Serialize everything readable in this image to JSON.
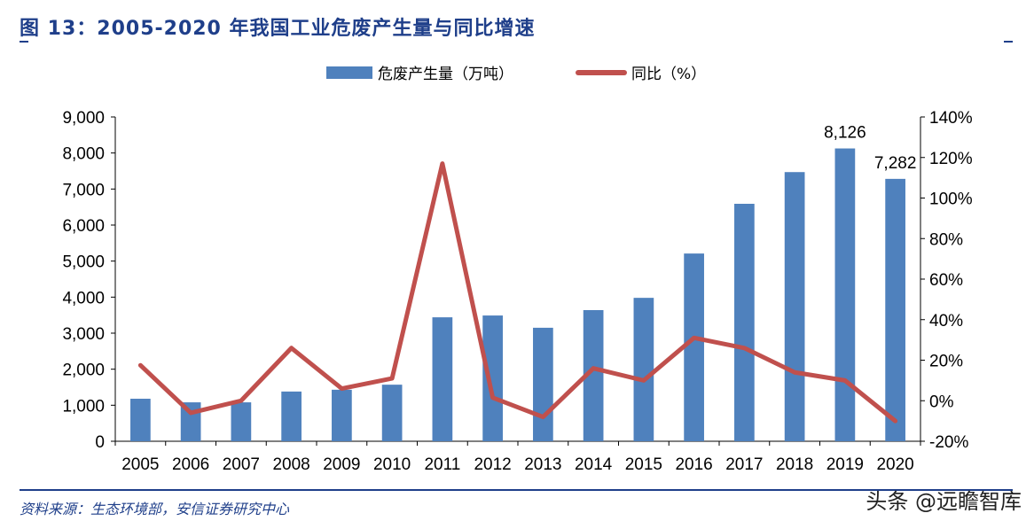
{
  "title": "图 13：2005-2020 年我国工业危废产生量与同比增速",
  "source": "资料来源：生态环境部，安信证券研究中心",
  "watermark": "头条 @远瞻智库",
  "chart_data": {
    "type": "bar+line",
    "categories": [
      "2005",
      "2006",
      "2007",
      "2008",
      "2009",
      "2010",
      "2011",
      "2012",
      "2013",
      "2014",
      "2015",
      "2016",
      "2017",
      "2018",
      "2019",
      "2020"
    ],
    "series": [
      {
        "name": "危废产生量（万吨）",
        "type": "bar",
        "axis": "left",
        "color": "#4f81bd",
        "values": [
          1180,
          1080,
          1080,
          1380,
          1430,
          1570,
          3440,
          3490,
          3150,
          3640,
          3980,
          5210,
          6590,
          7470,
          8126,
          7282
        ]
      },
      {
        "name": "同比（%）",
        "type": "line",
        "axis": "right",
        "color": "#c0504d",
        "values": [
          17.5,
          -6,
          0,
          26,
          6,
          11,
          117,
          1.5,
          -8,
          16,
          10,
          31,
          26,
          14,
          10,
          -10
        ]
      }
    ],
    "data_labels": [
      {
        "category": "2019",
        "text": "8,126"
      },
      {
        "category": "2020",
        "text": "7,282"
      }
    ],
    "left_axis": {
      "range": [
        0,
        9000
      ],
      "ticks": [
        "0",
        "1,000",
        "2,000",
        "3,000",
        "4,000",
        "5,000",
        "6,000",
        "7,000",
        "8,000",
        "9,000"
      ]
    },
    "right_axis": {
      "range": [
        -20,
        140
      ],
      "ticks": [
        "-20%",
        "0%",
        "20%",
        "40%",
        "60%",
        "80%",
        "100%",
        "120%",
        "140%"
      ]
    },
    "grid": false,
    "legend_position": "top"
  }
}
